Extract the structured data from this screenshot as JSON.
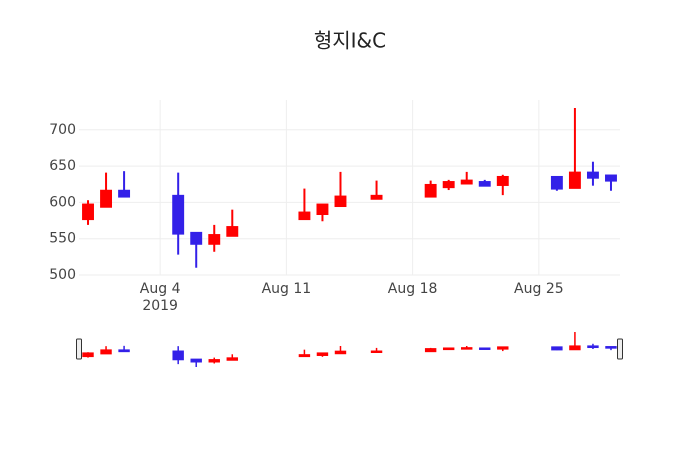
{
  "chart_data": {
    "type": "candlestick",
    "title": "형지I&C",
    "x": [
      "2019-07-31",
      "2019-08-01",
      "2019-08-02",
      "2019-08-05",
      "2019-08-06",
      "2019-08-07",
      "2019-08-08",
      "2019-08-12",
      "2019-08-13",
      "2019-08-14",
      "2019-08-16",
      "2019-08-19",
      "2019-08-20",
      "2019-08-21",
      "2019-08-22",
      "2019-08-23",
      "2019-08-26",
      "2019-08-27",
      "2019-08-28",
      "2019-08-29"
    ],
    "open": [
      577,
      594,
      616,
      609,
      558,
      543,
      554,
      577,
      584,
      595,
      605,
      608,
      621,
      626,
      628,
      624,
      635,
      620,
      641,
      637
    ],
    "high": [
      603,
      641,
      643,
      641,
      558,
      569,
      590,
      619,
      597,
      642,
      630,
      630,
      631,
      642,
      631,
      638,
      635,
      730,
      656,
      637
    ],
    "low": [
      569,
      594,
      607,
      528,
      510,
      532,
      554,
      577,
      574,
      595,
      605,
      608,
      617,
      626,
      623,
      610,
      616,
      620,
      623,
      616
    ],
    "close": [
      597,
      616,
      608,
      557,
      543,
      555,
      566,
      586,
      597,
      608,
      609,
      624,
      628,
      630,
      623,
      635,
      619,
      641,
      634,
      630
    ],
    "increasing_color": "#ff0000",
    "decreasing_color": "#3320e8",
    "xlim": [
      "2019-07-30T12:00",
      "2019-08-29T12:00"
    ],
    "xticks": [
      {
        "value": "2019-08-04",
        "label": [
          "Aug 4",
          "2019"
        ]
      },
      {
        "value": "2019-08-11",
        "label": [
          "Aug 11"
        ]
      },
      {
        "value": "2019-08-18",
        "label": [
          "Aug 18"
        ]
      },
      {
        "value": "2019-08-25",
        "label": [
          "Aug 25"
        ]
      }
    ],
    "ylim": [
      500,
      741
    ],
    "yticks": [
      500,
      550,
      600,
      650,
      700
    ],
    "grid": true,
    "rangeslider": true
  }
}
